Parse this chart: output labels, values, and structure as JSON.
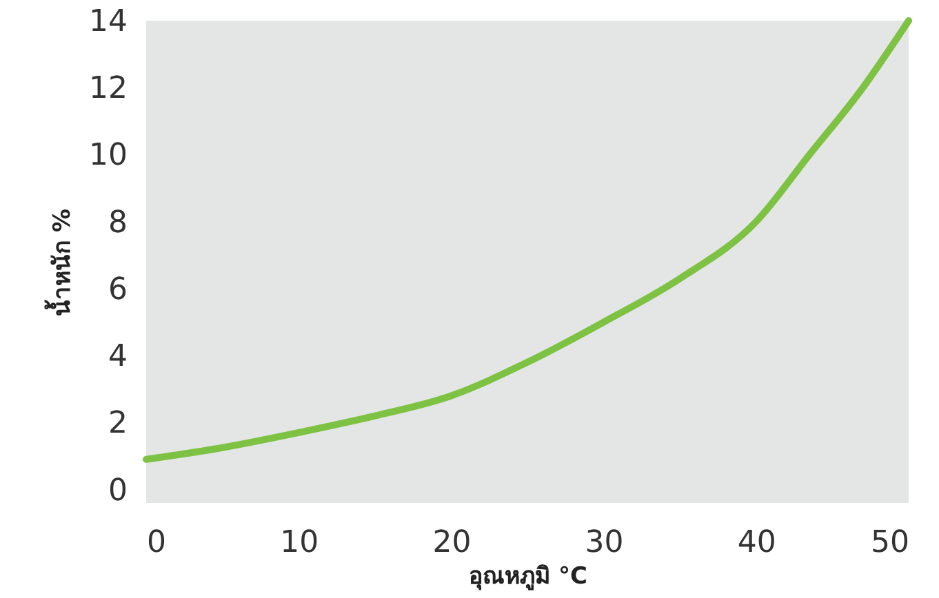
{
  "chart_data": {
    "type": "line",
    "xlabel": "อุณหภูมิ °C",
    "ylabel": "น้ำหนัก %",
    "x": [
      0,
      5,
      10,
      15,
      20,
      25,
      30,
      35,
      40,
      43.5,
      47,
      50
    ],
    "series": [
      {
        "color": "#7dc242",
        "values": [
          0.9,
          1.25,
          1.7,
          2.2,
          2.8,
          3.8,
          5.0,
          6.3,
          8.0,
          10,
          12,
          14
        ]
      }
    ],
    "xlim": [
      0,
      50
    ],
    "ylim": [
      -0.4,
      14
    ],
    "xticks": [
      0,
      10,
      20,
      30,
      40,
      50
    ],
    "yticks": [
      0,
      2,
      4,
      6,
      8,
      10,
      12,
      14
    ],
    "line_style": "solid",
    "grid": false
  }
}
